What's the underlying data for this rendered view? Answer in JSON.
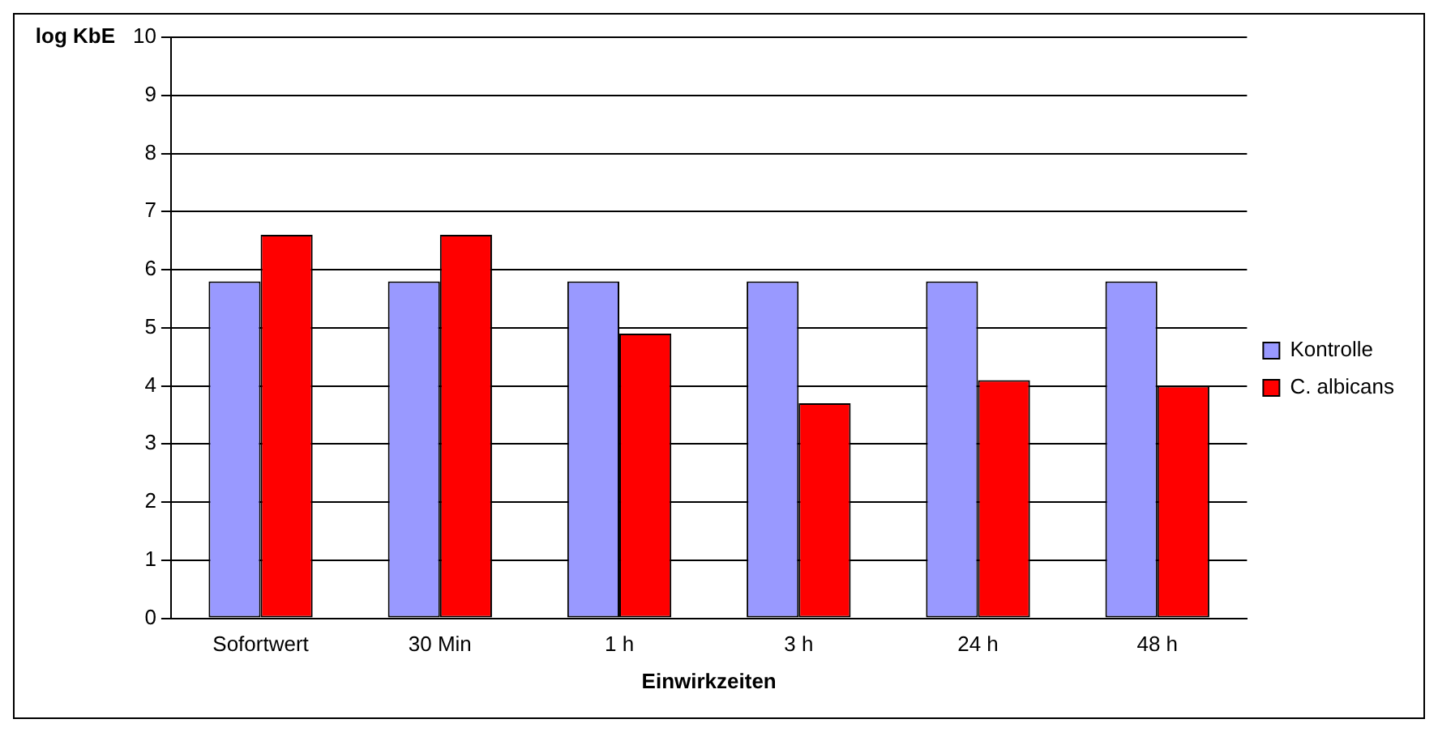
{
  "chart_data": {
    "type": "bar",
    "xlabel": "Einwirkzeiten",
    "ylabel": "log KbE",
    "categories": [
      "Sofortwert",
      "30 Min",
      "1 h",
      "3 h",
      "24 h",
      "48 h"
    ],
    "series": [
      {
        "name": "Kontrolle",
        "color": "#9999ff",
        "values": [
          5.8,
          5.8,
          5.8,
          5.8,
          5.8,
          5.8
        ]
      },
      {
        "name": "C. albicans",
        "color": "#ff0000",
        "values": [
          6.6,
          6.6,
          4.9,
          3.7,
          4.1,
          4.0
        ]
      }
    ],
    "ylim": [
      0,
      10
    ],
    "yticks": [
      0,
      1,
      2,
      3,
      4,
      5,
      6,
      7,
      8,
      9,
      10
    ],
    "grid": "y",
    "legend": "right"
  }
}
